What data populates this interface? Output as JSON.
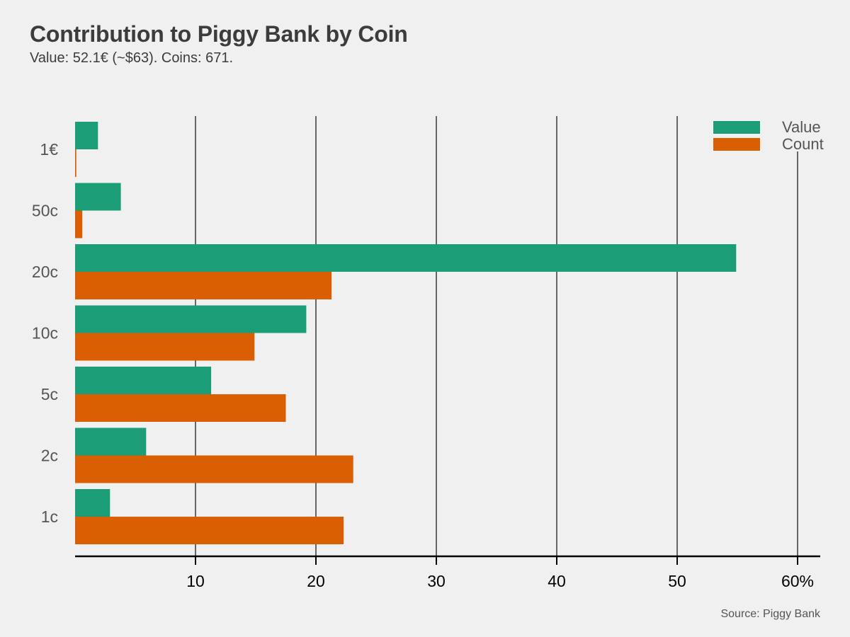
{
  "title": "Contribution to Piggy Bank by Coin",
  "subtitle": "Value: 52.1€ (~$63). Coins: 671.",
  "source": "Source: Piggy Bank",
  "colors": {
    "value": "#1b9e77",
    "count": "#d95f02",
    "grid": "#666666",
    "axis": "#000000"
  },
  "chart_data": {
    "type": "bar",
    "orientation": "horizontal",
    "title": "Contribution to Piggy Bank by Coin",
    "subtitle": "Value: 52.1€ (~$63). Coins: 671.",
    "categories": [
      "1€",
      "50c",
      "20c",
      "10c",
      "5c",
      "2c",
      "1c"
    ],
    "series": [
      {
        "name": "Value",
        "color": "#1b9e77",
        "values": [
          1.9,
          3.8,
          54.9,
          19.2,
          11.3,
          5.9,
          2.9
        ]
      },
      {
        "name": "Count",
        "color": "#d95f02",
        "values": [
          0.1,
          0.6,
          21.3,
          14.9,
          17.5,
          23.1,
          22.3
        ]
      }
    ],
    "x_ticks": [
      "10",
      "20",
      "30",
      "40",
      "50",
      "60%"
    ],
    "x_tick_values": [
      10,
      20,
      30,
      40,
      50,
      60
    ],
    "xlim": [
      0,
      62
    ],
    "grid": "vertical",
    "legend": "top-right"
  }
}
